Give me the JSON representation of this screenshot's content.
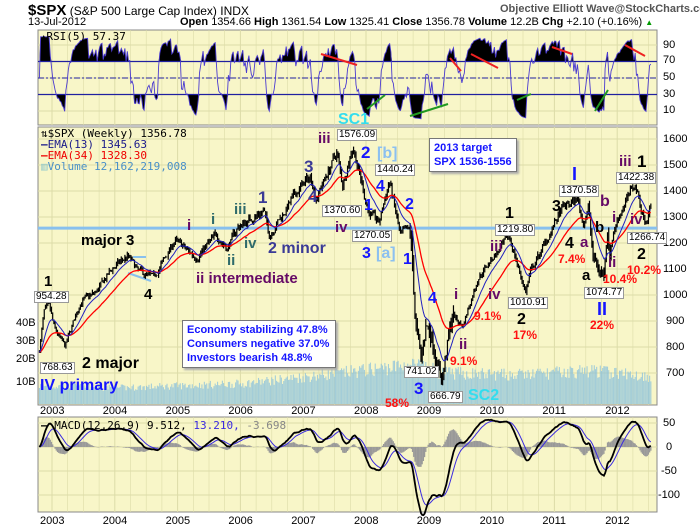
{
  "header": {
    "symbol": "$SPX",
    "name": "(S&P 500 Large Cap Index) INDX",
    "date": "13-Jul-2012",
    "brand": "Objective Elliott Wave@StockCharts.com",
    "open_label": "Open",
    "open": "1354.66",
    "high_label": "High",
    "high": "1361.54",
    "low_label": "Low",
    "low": "1325.41",
    "close_label": "Close",
    "close": "1356.78",
    "volume_label": "Volume",
    "volume": "12.2B",
    "chg_label": "Chg",
    "chg": "+2.10 (+0.16%)",
    "up_arrow": "▲"
  },
  "rsi_panel": {
    "legend": "RSI(5) 57.37",
    "ticks": [
      "90",
      "70",
      "50",
      "30",
      "10"
    ],
    "overbought": 70,
    "oversold": 30,
    "mid": 50
  },
  "price_panel": {
    "legend_price": "$SPX (Weekly) 1356.78",
    "legend_ema13": "EMA(13) 1345.63",
    "legend_ema34": "EMA(34) 1328.30",
    "legend_volume": "Volume 12,162,219,008",
    "ticks": [
      "1600",
      "1500",
      "1400",
      "1300",
      "1200",
      "1100",
      "1000",
      "900",
      "800",
      "700"
    ],
    "volume_ticks": [
      "40B",
      "30B",
      "20B",
      "10B"
    ],
    "horizontal_line_level": 1257
  },
  "macd_panel": {
    "legend_name": "MACD(12,26,9)",
    "legend_macd": "9.512,",
    "legend_signal": "13.210,",
    "legend_hist": "-3.698",
    "ticks": [
      "50",
      "0",
      "-50",
      "-100"
    ]
  },
  "years": [
    "2003",
    "2004",
    "2005",
    "2006",
    "2007",
    "2008",
    "2009",
    "2010",
    "2011",
    "2012"
  ],
  "colors": {
    "panel_bg": "#F8F6C8",
    "grid": "#DCDCA8",
    "ema13": "#2020c0",
    "ema34": "#ff0000",
    "rsi": "#4a3ad0",
    "volume": "#8ec3dc",
    "macd": "#000000",
    "signal": "#3a2ae0",
    "hist": "#999999",
    "hline": "#88c0ee"
  },
  "annotations": [
    {
      "text": "SC1"
    },
    {
      "text": "1576.09"
    },
    {
      "text": "iii"
    },
    {
      "text": "2"
    },
    {
      "text": "3"
    },
    {
      "text": "1370.60"
    },
    {
      "text": "4"
    },
    {
      "text": "iv"
    },
    {
      "text": "1"
    },
    {
      "text": "iii"
    },
    {
      "text": "i"
    },
    {
      "text": "i"
    },
    {
      "text": "iv"
    },
    {
      "text": "ii"
    },
    {
      "text": "2 minor"
    },
    {
      "text": "ii intermediate"
    },
    {
      "text": "major 3"
    },
    {
      "text": "4"
    },
    {
      "text": "1"
    },
    {
      "text": "954.28"
    },
    {
      "text": "2 major"
    },
    {
      "text": "768.63"
    },
    {
      "text": "IV primary"
    },
    {
      "text": "[b]"
    },
    {
      "text": "1440.24"
    },
    {
      "text": "4"
    },
    {
      "text": "1"
    },
    {
      "text": "1270.05"
    },
    {
      "text": "2"
    },
    {
      "text": "3"
    },
    {
      "text": "[a]"
    },
    {
      "text": "1"
    },
    {
      "text": "4"
    },
    {
      "text": "i"
    },
    {
      "text": "iv"
    },
    {
      "text": "9.1%"
    },
    {
      "text": "1010.91"
    },
    {
      "text": "iii"
    },
    {
      "text": "1"
    },
    {
      "text": "1219.80"
    },
    {
      "text": "2"
    },
    {
      "text": "17%"
    },
    {
      "text": "ii"
    },
    {
      "text": "9.1%"
    },
    {
      "text": "741.02"
    },
    {
      "text": "3"
    },
    {
      "text": "58%"
    },
    {
      "text": "666.79"
    },
    {
      "text": "SC2"
    },
    {
      "text": "3"
    },
    {
      "text": "I"
    },
    {
      "text": "1370.58"
    },
    {
      "text": "b"
    },
    {
      "text": "4"
    },
    {
      "text": "a"
    },
    {
      "text": "7.4%"
    },
    {
      "text": "b"
    },
    {
      "text": "i"
    },
    {
      "text": "a"
    },
    {
      "text": "1074.77"
    },
    {
      "text": "ii"
    },
    {
      "text": "10.4%"
    },
    {
      "text": "II"
    },
    {
      "text": "22%"
    },
    {
      "text": "iii"
    },
    {
      "text": "1"
    },
    {
      "text": "1422.38"
    },
    {
      "text": "iv"
    },
    {
      "text": "1266.74"
    },
    {
      "text": "2"
    },
    {
      "text": "10.2%"
    }
  ],
  "target_box": {
    "line1": "2013 target",
    "line2": "SPX 1536-1556"
  },
  "sentiment_box": {
    "line1": "Economy stabilizing 47.8%",
    "line2": "Consumers negative 37.0%",
    "line3": "Investors bearish 48.8%"
  },
  "chart_data": {
    "type": "line",
    "title": "$SPX (S&P 500 Large Cap Index) INDX",
    "frequency": "weekly",
    "y_scale": "linear",
    "ylim": [
      620,
      1640
    ],
    "grid": true,
    "price_anchors": [
      [
        "2002-10",
        768.63
      ],
      [
        "2002-11",
        935
      ],
      [
        "2002-12",
        954.28
      ],
      [
        "2003-01",
        870
      ],
      [
        "2003-03",
        800
      ],
      [
        "2003-06",
        975
      ],
      [
        "2003-09",
        1010
      ],
      [
        "2003-12",
        1100
      ],
      [
        "2004-03",
        1150
      ],
      [
        "2004-05",
        1090
      ],
      [
        "2004-08",
        1065
      ],
      [
        "2004-12",
        1210
      ],
      [
        "2005-04",
        1145
      ],
      [
        "2005-08",
        1230
      ],
      [
        "2005-10",
        1180
      ],
      [
        "2005-12",
        1260
      ],
      [
        "2006-05",
        1325
      ],
      [
        "2006-06",
        1230
      ],
      [
        "2006-12",
        1415
      ],
      [
        "2007-02",
        1455
      ],
      [
        "2007-03",
        1375
      ],
      [
        "2007-07",
        1550
      ],
      [
        "2007-08",
        1420
      ],
      [
        "2007-10",
        1576.09
      ],
      [
        "2008-01",
        1320
      ],
      [
        "2008-03",
        1275
      ],
      [
        "2008-05",
        1440.24
      ],
      [
        "2008-07",
        1230
      ],
      [
        "2008-09",
        1250
      ],
      [
        "2008-10",
        900
      ],
      [
        "2008-11",
        741.02
      ],
      [
        "2008-12",
        890
      ],
      [
        "2009-01",
        850
      ],
      [
        "2009-03",
        666.79
      ],
      [
        "2009-05",
        920
      ],
      [
        "2009-07",
        880
      ],
      [
        "2009-10",
        1070
      ],
      [
        "2010-01",
        1150
      ],
      [
        "2010-04",
        1219.8
      ],
      [
        "2010-07",
        1010.91
      ],
      [
        "2010-08",
        1090
      ],
      [
        "2010-12",
        1250
      ],
      [
        "2011-02",
        1330
      ],
      [
        "2011-05",
        1370.58
      ],
      [
        "2011-06",
        1270
      ],
      [
        "2011-07",
        1340
      ],
      [
        "2011-08",
        1130
      ],
      [
        "2011-10",
        1074.77
      ],
      [
        "2011-10b",
        1280
      ],
      [
        "2011-11",
        1160
      ],
      [
        "2011-12",
        1260
      ],
      [
        "2012-02",
        1360
      ],
      [
        "2012-04",
        1422.38
      ],
      [
        "2012-06",
        1266.74
      ],
      [
        "2012-07",
        1356.78
      ]
    ],
    "volume_anchors_billions": [
      [
        "2002-10",
        8
      ],
      [
        "2004",
        7
      ],
      [
        "2006",
        9
      ],
      [
        "2007-08",
        14
      ],
      [
        "2008-10",
        18
      ],
      [
        "2009-03",
        14
      ],
      [
        "2010-05",
        13
      ],
      [
        "2011-08",
        15
      ],
      [
        "2012-07",
        12.2
      ]
    ],
    "series": [
      {
        "name": "$SPX (Weekly)",
        "last": 1356.78
      },
      {
        "name": "EMA(13)",
        "last": 1345.63
      },
      {
        "name": "EMA(34)",
        "last": 1328.3
      },
      {
        "name": "RSI(5)",
        "last": 57.37
      },
      {
        "name": "MACD(12,26,9)",
        "macd": 9.512,
        "signal": 13.21,
        "histogram": -3.698
      }
    ]
  }
}
